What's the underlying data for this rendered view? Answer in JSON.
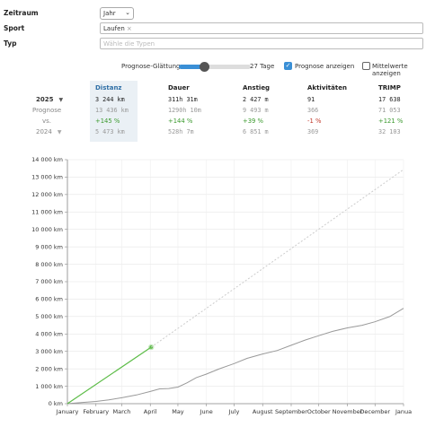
{
  "filters": {
    "zeitraum": {
      "label": "Zeitraum",
      "value": "Jahr"
    },
    "sport": {
      "label": "Sport",
      "value": "Laufen",
      "remove_glyph": "×"
    },
    "typ": {
      "label": "Typ",
      "placeholder": "Wähle die Typen"
    }
  },
  "controls": {
    "smoothing_label": "Prognose-Glättung",
    "smoothing_value": "27 Tage",
    "smoothing_fraction": 0.34,
    "show_forecast_label": "Prognose anzeigen",
    "show_forecast_checked": true,
    "show_averages_label": "Mittelwerte anzeigen",
    "show_averages_checked": false
  },
  "stats": {
    "headers": [
      "Distanz",
      "Dauer",
      "Anstieg",
      "Aktivitäten",
      "TRIMP"
    ],
    "current": {
      "label": "2025",
      "values": [
        "3 244 km",
        "311h 31m",
        "2 427 m",
        "91",
        "17 638"
      ]
    },
    "forecast": {
      "label": "Prognose",
      "values": [
        "13 436 km",
        "1290h 10m",
        "9 493 m",
        "366",
        "71 053"
      ]
    },
    "vs": {
      "label": "vs.",
      "values": [
        "+145 %",
        "+144 %",
        "+39 %",
        "-1 %",
        "+121 %"
      ],
      "signs": [
        "pos",
        "pos",
        "pos",
        "neg",
        "pos"
      ]
    },
    "previous": {
      "label": "2024",
      "values": [
        "5 473 km",
        "528h 7m",
        "6 851 m",
        "369",
        "32 103"
      ]
    }
  },
  "chart_data": {
    "type": "line",
    "y_unit": "km",
    "ylim": [
      0,
      14000
    ],
    "yticks": [
      0,
      1000,
      2000,
      3000,
      4000,
      5000,
      6000,
      7000,
      8000,
      9000,
      10000,
      11000,
      12000,
      13000,
      14000
    ],
    "ytick_labels": [
      "0 km",
      "1 000 km",
      "2 000 km",
      "3 000 km",
      "4 000 km",
      "5 000 km",
      "6 000 km",
      "7 000 km",
      "8 000 km",
      "9 000 km",
      "10 000 km",
      "11 000 km",
      "12 000 km",
      "13 000 km",
      "14 000 km"
    ],
    "xlim": [
      0,
      365
    ],
    "xticks": [
      0,
      31,
      59,
      90,
      120,
      151,
      181,
      212,
      243,
      273,
      304,
      334,
      365
    ],
    "xtick_labels": [
      "January",
      "February",
      "March",
      "April",
      "May",
      "June",
      "July",
      "August",
      "September",
      "October",
      "November",
      "December",
      "Janua"
    ],
    "grid": true,
    "series": [
      {
        "role": "previous_year",
        "color": "#999999",
        "x": [
          0,
          15,
          31,
          45,
          59,
          75,
          90,
          100,
          110,
          120,
          130,
          140,
          151,
          165,
          181,
          195,
          212,
          228,
          243,
          258,
          273,
          288,
          304,
          320,
          334,
          350,
          365
        ],
        "values": [
          0,
          60,
          130,
          220,
          340,
          500,
          700,
          850,
          870,
          950,
          1200,
          1500,
          1700,
          2000,
          2300,
          2600,
          2850,
          3050,
          3350,
          3650,
          3900,
          4150,
          4350,
          4500,
          4700,
          5000,
          5473
        ]
      },
      {
        "role": "current_year",
        "color": "#5cbc47",
        "x": [
          0,
          91
        ],
        "values": [
          0,
          3244
        ]
      },
      {
        "role": "forecast",
        "color": "#cccccc",
        "dashed": true,
        "x": [
          91,
          365
        ],
        "values": [
          3244,
          13436
        ]
      }
    ]
  }
}
